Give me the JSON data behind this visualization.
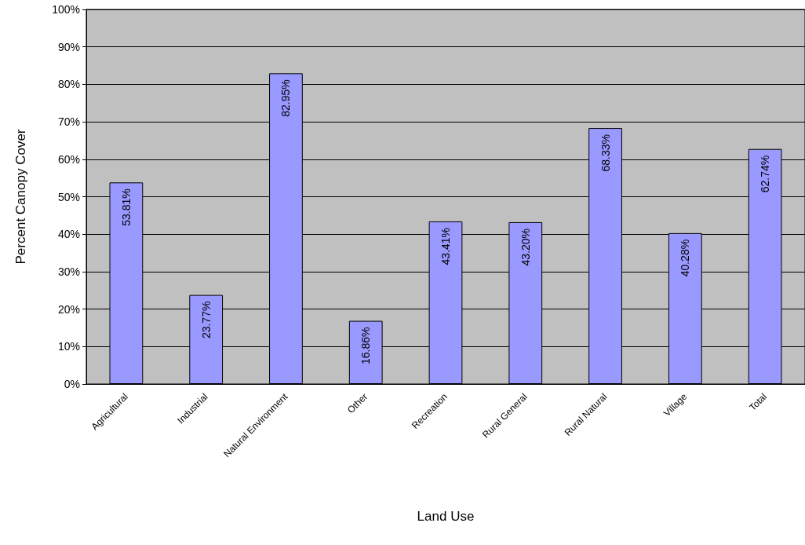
{
  "chart_data": {
    "type": "bar",
    "xlabel": "Land Use",
    "ylabel": "Percent Canopy Cover",
    "categories": [
      "Agricultural",
      "Industrial",
      "Natural Environment",
      "Other",
      "Recreation",
      "Rural General",
      "Rural Natural",
      "Village",
      "Total"
    ],
    "values": [
      53.81,
      23.77,
      82.95,
      16.86,
      43.41,
      43.2,
      68.33,
      40.28,
      62.74
    ],
    "value_labels": [
      "53.81%",
      "23.77%",
      "82.95%",
      "16.86%",
      "43.41%",
      "43.20%",
      "68.33%",
      "40.28%",
      "62.74%"
    ],
    "color": "#9999ff",
    "ylim": [
      0,
      100
    ],
    "yticks": [
      {
        "value": 0,
        "label": "0%"
      },
      {
        "value": 10,
        "label": "10%"
      },
      {
        "value": 20,
        "label": "20%"
      },
      {
        "value": 30,
        "label": "30%"
      },
      {
        "value": 40,
        "label": "40%"
      },
      {
        "value": 50,
        "label": "50%"
      },
      {
        "value": 60,
        "label": "60%"
      },
      {
        "value": 70,
        "label": "70%"
      },
      {
        "value": 80,
        "label": "80%"
      },
      {
        "value": 90,
        "label": "90%"
      },
      {
        "value": 100,
        "label": "100%"
      }
    ],
    "grid": "y"
  }
}
